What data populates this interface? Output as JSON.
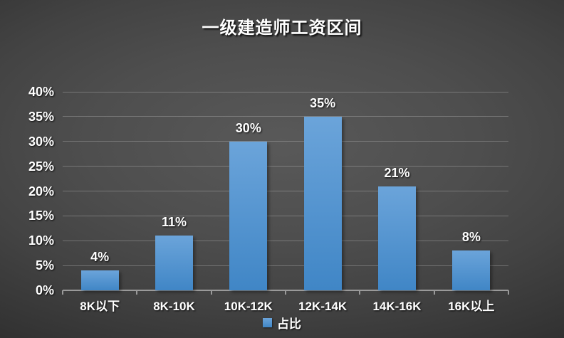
{
  "title": "一级建造师工资区间",
  "chart_data": {
    "type": "bar",
    "title": "一级建造师工资区间",
    "categories": [
      "8K以下",
      "8K-10K",
      "10K-12K",
      "12K-14K",
      "14K-16K",
      "16K以上"
    ],
    "series": [
      {
        "name": "占比",
        "values": [
          4,
          11,
          30,
          35,
          21,
          8
        ]
      }
    ],
    "data_labels": [
      "4%",
      "11%",
      "30%",
      "35%",
      "21%",
      "8%"
    ],
    "xlabel": "",
    "ylabel": "",
    "ylim": [
      0,
      40
    ],
    "ytick_step": 5,
    "ytick_labels": [
      "0%",
      "5%",
      "10%",
      "15%",
      "20%",
      "25%",
      "30%",
      "35%",
      "40%"
    ],
    "grid": true,
    "legend": {
      "position": "bottom",
      "entries": [
        "占比"
      ]
    },
    "colors": {
      "bar_gradient_top": "#6ba4da",
      "bar_gradient_bottom": "#4086c6",
      "text": "#ffffff",
      "gridline": "rgba(255,255,255,0.24)",
      "axis_line": "#9a9a9a",
      "background_center": "#565656",
      "background_edge": "#1e1e1e"
    }
  }
}
